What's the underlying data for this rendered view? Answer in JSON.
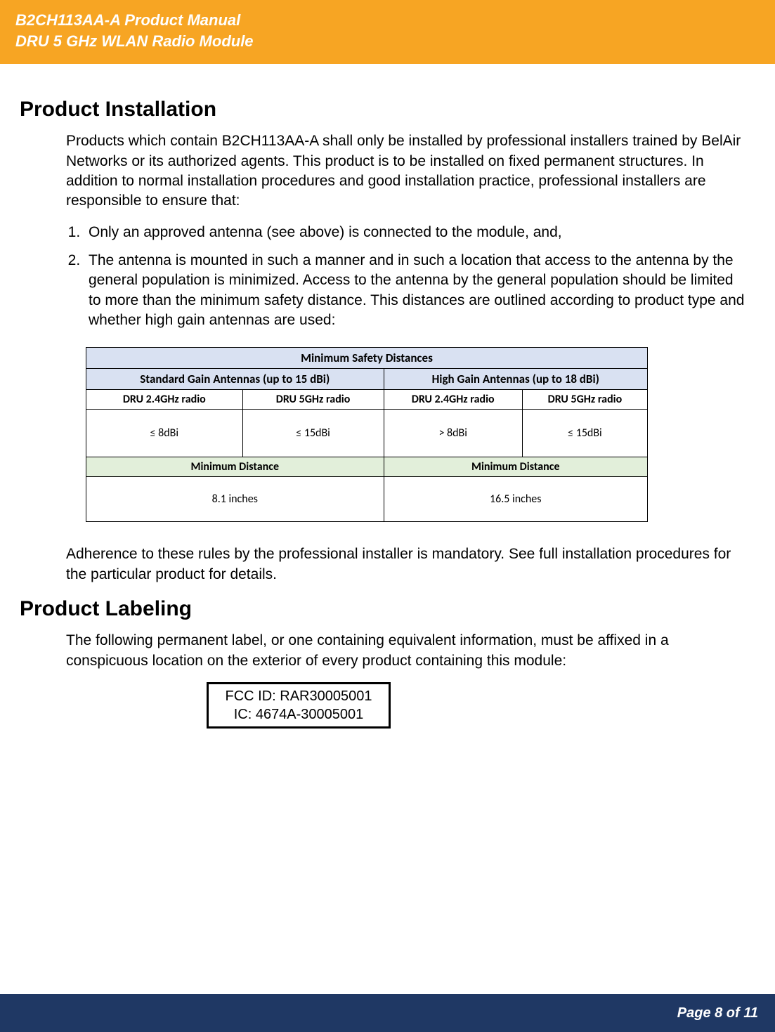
{
  "header": {
    "line1": "B2CH113AA-A Product Manual",
    "line2": "DRU 5 GHz WLAN Radio Module",
    "bg_color": "#f7a523",
    "text_color": "#ffffff"
  },
  "sections": {
    "installation": {
      "title": "Product Installation",
      "intro": "Products which contain B2CH113AA-A shall only be installed by professional installers trained by BelAir Networks or its authorized agents.  This product is to be installed on fixed permanent structures.   In addition to normal installation procedures and good installation practice, professional installers are responsible to ensure that:",
      "items": [
        "Only an approved antenna (see above) is connected to the module, and,",
        "The antenna is mounted in such a manner and in such a location that access to the antenna by the general population is minimized.  Access to the antenna by the general population should be limited to more than the minimum safety distance.  This distances are outlined according to product type and whether high gain antennas are used:"
      ],
      "closing": "Adherence to these rules by the professional installer is mandatory.  See full installation procedures for the particular product for details."
    },
    "labeling": {
      "title": "Product Labeling",
      "intro": "The following permanent label, or one containing equivalent information, must be affixed in a conspicuous location on the exterior of every product containing this module:",
      "label": {
        "fcc": "FCC ID: RAR30005001",
        "ic": "IC:  4674A-30005001"
      }
    }
  },
  "table": {
    "title": "Minimum Safety Distances",
    "header_bg": "#d9e1f2",
    "min_dist_bg": "#e2efda",
    "border_color": "#000000",
    "columns": {
      "std": "Standard Gain Antennas (up to 15 dBi)",
      "high": "High Gain Antennas (up to 18 dBi)"
    },
    "radio_labels": {
      "r24": "DRU 2.4GHz radio",
      "r5": "DRU 5GHz radio"
    },
    "gains": {
      "std_24": "≤ 8dBi",
      "std_5": "≤ 15dBi",
      "high_24": "> 8dBi",
      "high_5": "≤ 15dBi"
    },
    "min_dist_label": "Minimum Distance",
    "distances": {
      "std": "8.1 inches",
      "high": "16.5 inches"
    }
  },
  "footer": {
    "text": "Page 8 of 11",
    "bg_color": "#1f3864",
    "text_color": "#ffffff"
  }
}
